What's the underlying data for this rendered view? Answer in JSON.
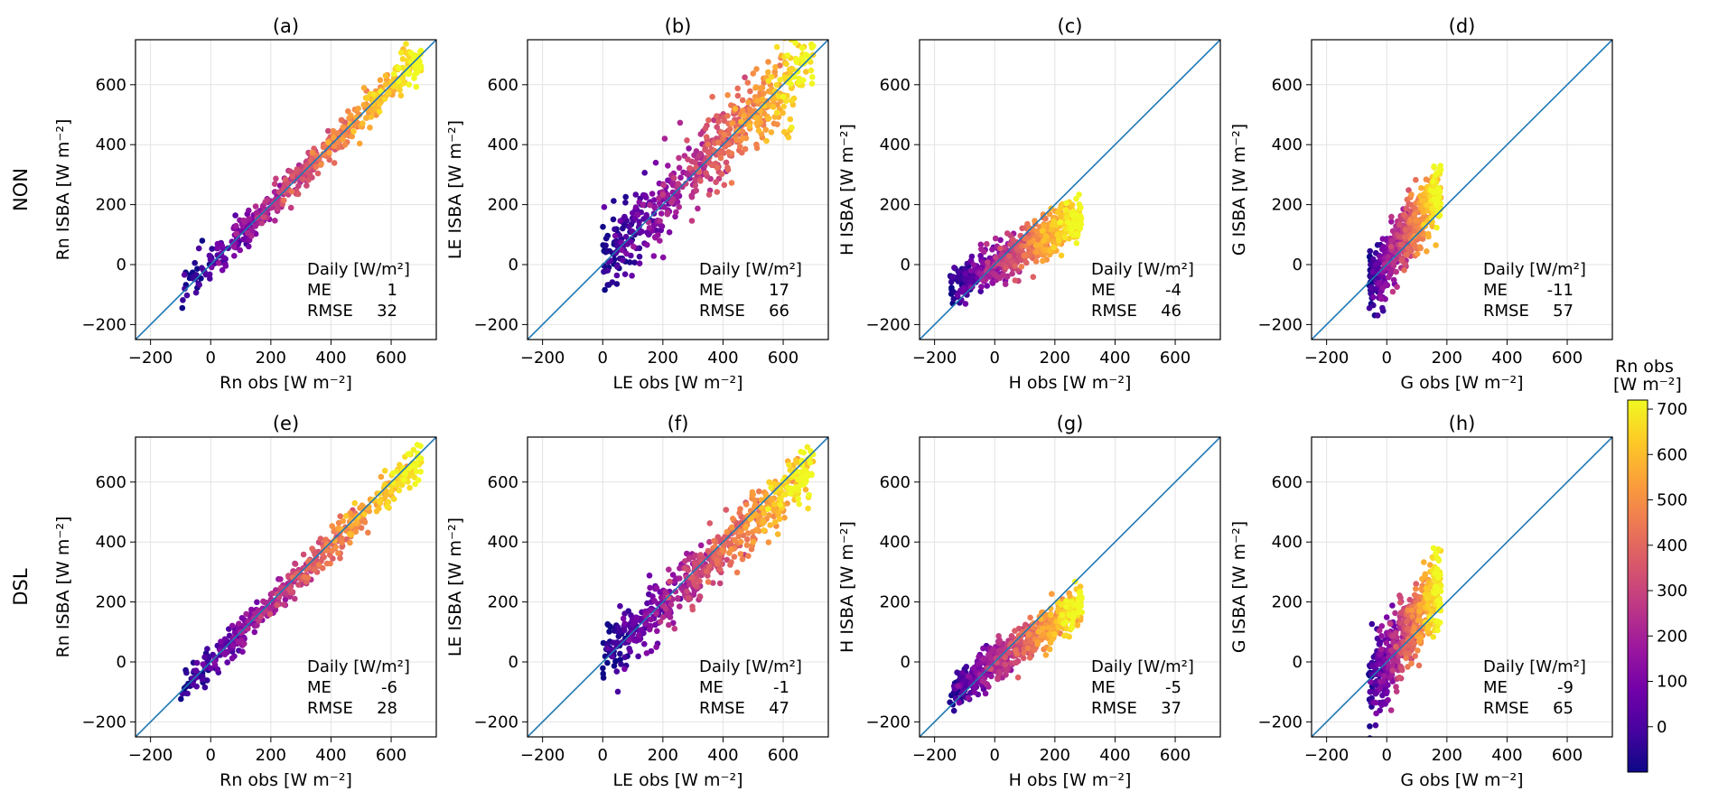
{
  "figure": {
    "row_labels": [
      "NON",
      "DSL"
    ],
    "colorbar": {
      "title_line1": "Rn obs",
      "title_line2": "[W m⁻²]",
      "range": [
        -100,
        720
      ],
      "ticks": [
        0,
        100,
        200,
        300,
        400,
        500,
        600,
        700
      ],
      "colormap": "plasma",
      "colors": [
        "#0d0887",
        "#46039f",
        "#7201a8",
        "#9c179e",
        "#bd3786",
        "#d8576b",
        "#ed7953",
        "#fb9f3a",
        "#fdca26",
        "#f0f921"
      ]
    },
    "line_color": "#1f77b4",
    "grid_color": "#e3e3e3"
  },
  "chart_data": [
    {
      "panel": "(a)",
      "type": "scatter",
      "row": "NON",
      "xlabel": "Rn obs [W m⁻²]",
      "ylabel": "Rn ISBA [W m⁻²]",
      "xlim": [
        -250,
        750
      ],
      "ylim": [
        -250,
        750
      ],
      "xticks": [
        -200,
        0,
        200,
        400,
        600
      ],
      "yticks": [
        -200,
        0,
        200,
        400,
        600
      ],
      "grid": true,
      "identity_line": true,
      "stats": {
        "header": "Daily [W/m²]",
        "me_label": "ME",
        "me": "1",
        "rmse_label": "RMSE",
        "rmse": "32"
      },
      "cloud": {
        "x_range": [
          -100,
          700
        ],
        "slope": 0.99,
        "intercept": 1,
        "spread": 30,
        "n": 520,
        "seed": 11
      }
    },
    {
      "panel": "(b)",
      "type": "scatter",
      "row": "NON",
      "xlabel": "LE obs [W m⁻²]",
      "ylabel": "LE ISBA [W m⁻²]",
      "xlim": [
        -250,
        750
      ],
      "ylim": [
        -250,
        750
      ],
      "xticks": [
        -200,
        0,
        200,
        400,
        600
      ],
      "yticks": [
        -200,
        0,
        200,
        400,
        600
      ],
      "grid": true,
      "identity_line": true,
      "stats": {
        "header": "Daily [W/m²]",
        "me_label": "ME",
        "me": "17",
        "rmse_label": "RMSE",
        "rmse": "66"
      },
      "cloud": {
        "x_range": [
          0,
          700
        ],
        "slope": 0.97,
        "intercept": 20,
        "spread": 65,
        "n": 620,
        "seed": 23
      }
    },
    {
      "panel": "(c)",
      "type": "scatter",
      "row": "NON",
      "xlabel": "H obs [W m⁻²]",
      "ylabel": "H ISBA [W m⁻²]",
      "xlim": [
        -250,
        750
      ],
      "ylim": [
        -250,
        750
      ],
      "xticks": [
        -200,
        0,
        200,
        400,
        600
      ],
      "yticks": [
        -200,
        0,
        200,
        400,
        600
      ],
      "grid": true,
      "identity_line": true,
      "stats": {
        "header": "Daily [W/m²]",
        "me_label": "ME",
        "me": "-4",
        "rmse_label": "RMSE",
        "rmse": "46"
      },
      "cloud": {
        "x_range": [
          -150,
          290
        ],
        "slope": 0.55,
        "intercept": 0,
        "spread": 38,
        "n": 560,
        "seed": 37
      }
    },
    {
      "panel": "(d)",
      "type": "scatter",
      "row": "NON",
      "xlabel": "G obs [W m⁻²]",
      "ylabel": "G ISBA [W m⁻²]",
      "xlim": [
        -250,
        750
      ],
      "ylim": [
        -250,
        750
      ],
      "xticks": [
        -200,
        0,
        200,
        400,
        600
      ],
      "yticks": [
        -200,
        0,
        200,
        400,
        600
      ],
      "grid": true,
      "identity_line": true,
      "stats": {
        "header": "Daily [W/m²]",
        "me_label": "ME",
        "me": "-11",
        "rmse_label": "RMSE",
        "rmse": "57"
      },
      "cloud": {
        "x_range": [
          -60,
          180
        ],
        "slope": 1.3,
        "intercept": 10,
        "spread": 55,
        "n": 560,
        "seed": 41
      }
    },
    {
      "panel": "(e)",
      "type": "scatter",
      "row": "DSL",
      "xlabel": "Rn obs [W m⁻²]",
      "ylabel": "Rn ISBA [W m⁻²]",
      "xlim": [
        -250,
        750
      ],
      "ylim": [
        -250,
        750
      ],
      "xticks": [
        -200,
        0,
        200,
        400,
        600
      ],
      "yticks": [
        -200,
        0,
        200,
        400,
        600
      ],
      "grid": true,
      "identity_line": true,
      "stats": {
        "header": "Daily [W/m²]",
        "me_label": "ME",
        "me": "-6",
        "rmse_label": "RMSE",
        "rmse": "28"
      },
      "cloud": {
        "x_range": [
          -100,
          700
        ],
        "slope": 0.98,
        "intercept": -4,
        "spread": 27,
        "n": 520,
        "seed": 53
      }
    },
    {
      "panel": "(f)",
      "type": "scatter",
      "row": "DSL",
      "xlabel": "LE obs [W m⁻²]",
      "ylabel": "LE ISBA [W m⁻²]",
      "xlim": [
        -250,
        750
      ],
      "ylim": [
        -250,
        750
      ],
      "xticks": [
        -200,
        0,
        200,
        400,
        600
      ],
      "yticks": [
        -200,
        0,
        200,
        400,
        600
      ],
      "grid": true,
      "identity_line": true,
      "stats": {
        "header": "Daily [W/m²]",
        "me_label": "ME",
        "me": "-1",
        "rmse_label": "RMSE",
        "rmse": "47"
      },
      "cloud": {
        "x_range": [
          0,
          700
        ],
        "slope": 0.92,
        "intercept": 8,
        "spread": 48,
        "n": 620,
        "seed": 67
      }
    },
    {
      "panel": "(g)",
      "type": "scatter",
      "row": "DSL",
      "xlabel": "H obs [W m⁻²]",
      "ylabel": "H ISBA [W m⁻²]",
      "xlim": [
        -250,
        750
      ],
      "ylim": [
        -250,
        750
      ],
      "xticks": [
        -200,
        0,
        200,
        400,
        600
      ],
      "yticks": [
        -200,
        0,
        200,
        400,
        600
      ],
      "grid": true,
      "identity_line": true,
      "stats": {
        "header": "Daily [W/m²]",
        "me_label": "ME",
        "me": "-5",
        "rmse_label": "RMSE",
        "rmse": "37"
      },
      "cloud": {
        "x_range": [
          -150,
          290
        ],
        "slope": 0.7,
        "intercept": -5,
        "spread": 32,
        "n": 560,
        "seed": 79
      }
    },
    {
      "panel": "(h)",
      "type": "scatter",
      "row": "DSL",
      "xlabel": "G obs [W m⁻²]",
      "ylabel": "G ISBA [W m⁻²]",
      "xlim": [
        -250,
        750
      ],
      "ylim": [
        -250,
        750
      ],
      "xticks": [
        -200,
        0,
        200,
        400,
        600
      ],
      "yticks": [
        -200,
        0,
        200,
        400,
        600
      ],
      "grid": true,
      "identity_line": true,
      "stats": {
        "header": "Daily [W/m²]",
        "me_label": "ME",
        "me": "-9",
        "rmse_label": "RMSE",
        "rmse": "65"
      },
      "cloud": {
        "x_range": [
          -60,
          180
        ],
        "slope": 1.4,
        "intercept": 5,
        "spread": 65,
        "n": 560,
        "seed": 97
      }
    }
  ]
}
